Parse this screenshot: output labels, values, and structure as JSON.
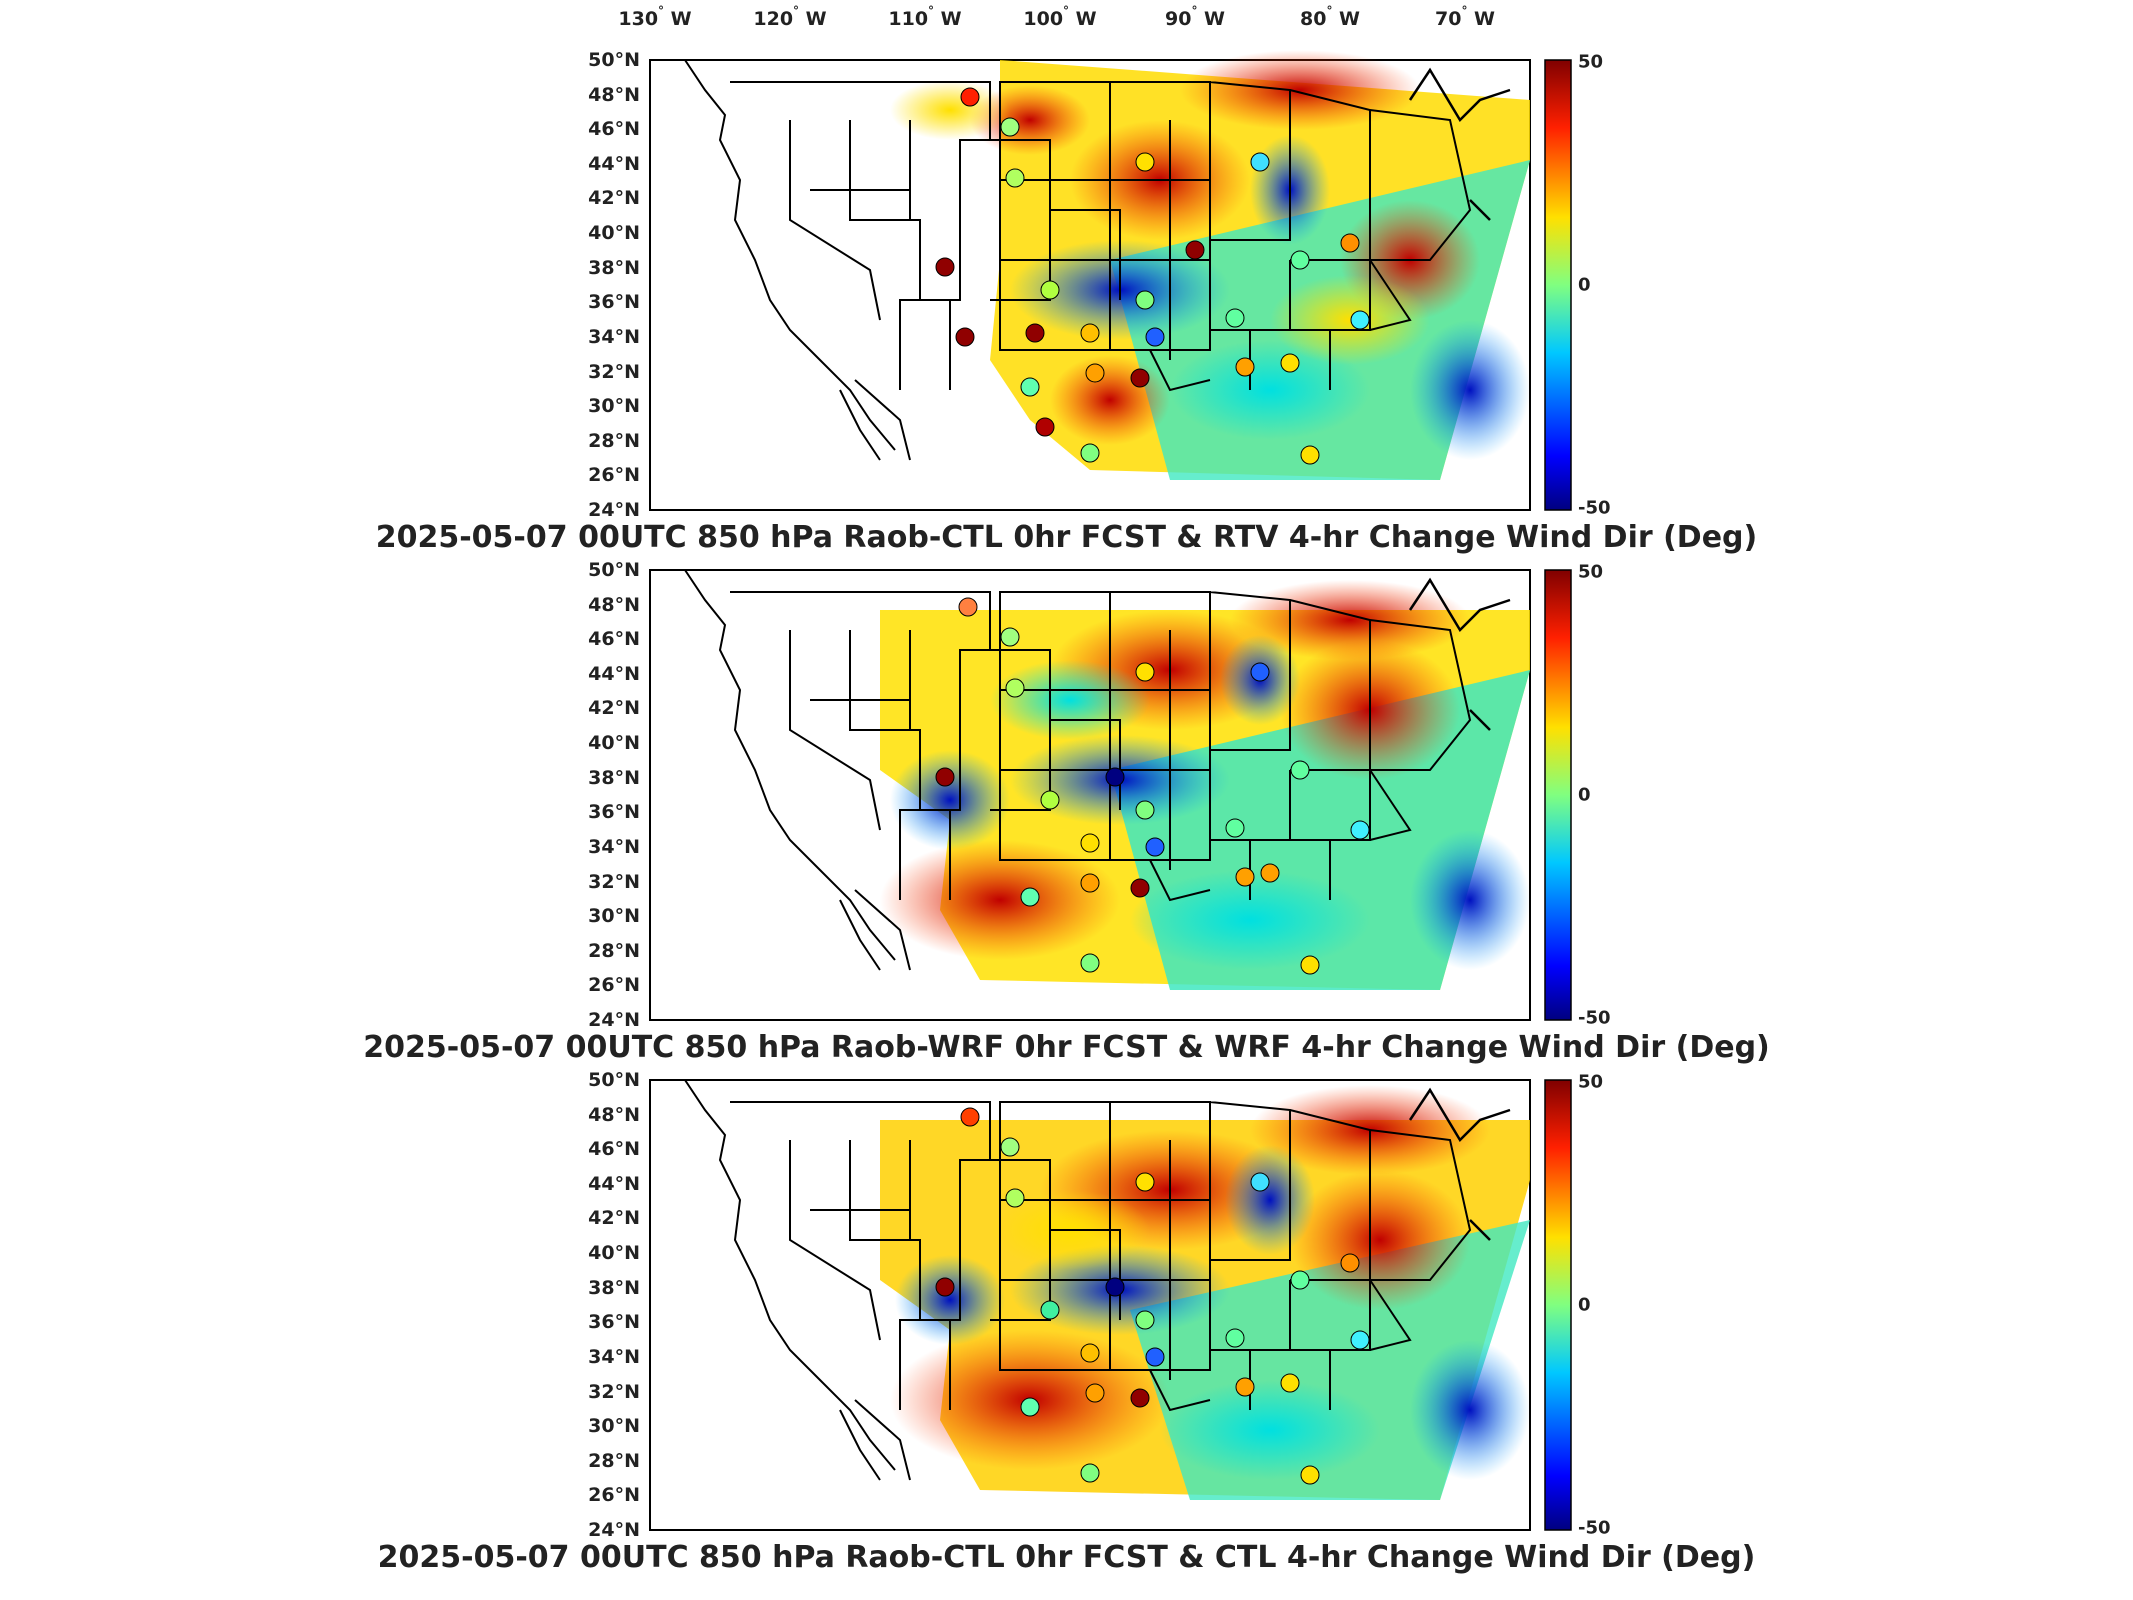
{
  "top_longitudes": [
    "130°W",
    "120°W",
    "110°W",
    "100°W",
    "90°W",
    "80°W",
    "70°W"
  ],
  "latitudes": [
    "50°N",
    "48°N",
    "46°N",
    "44°N",
    "42°N",
    "40°N",
    "38°N",
    "36°N",
    "34°N",
    "32°N",
    "30°N",
    "28°N",
    "26°N",
    "24°N"
  ],
  "colorbar": {
    "max": "50",
    "mid": "0",
    "min": "-50"
  },
  "panels": [
    {
      "title": "2025-05-07 00UTC 850 hPa Raob-CTL 0hr FCST & RTV 4-hr Change Wind Dir (Deg)"
    },
    {
      "title": "2025-05-07 00UTC 850 hPa Raob-WRF 0hr FCST & WRF 4-hr Change Wind Dir (Deg)"
    },
    {
      "title": "2025-05-07 00UTC 850 hPa Raob-CTL 0hr FCST & CTL 4-hr Change Wind Dir (Deg)"
    }
  ],
  "colors": {
    "max": "#800000",
    "high": "#ff2000",
    "mid_high": "#ffd800",
    "zero": "#80ff80",
    "mid_low": "#00d0ff",
    "low": "#0040ff",
    "min": "#000080"
  }
}
